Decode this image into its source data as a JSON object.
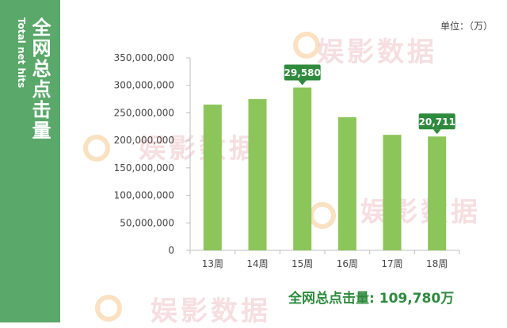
{
  "sidebar": {
    "title": "全网总点击量",
    "subtitle": "Total net hits",
    "color": "#5aa86a"
  },
  "unit_label": "单位：（万）",
  "watermark": "娱影数据",
  "summary": {
    "label": "全网总点击量:",
    "value": "109,780万"
  },
  "chart_data": {
    "type": "bar",
    "categories": [
      "13周",
      "14周",
      "15周",
      "16周",
      "17周",
      "18周"
    ],
    "values": [
      265000000,
      275000000,
      296000000,
      242000000,
      210000000,
      207000000
    ],
    "ylim": [
      0,
      350000000
    ],
    "yticks": [
      0,
      50000000,
      100000000,
      150000000,
      200000000,
      250000000,
      300000000,
      350000000
    ],
    "ytick_labels": [
      "0",
      "50,000,000",
      "100,000,000",
      "150,000,000",
      "200,000,000",
      "250,000,000",
      "300,000,000",
      "350,000,000"
    ],
    "grid": false,
    "bar_color": "#8cc55a",
    "annotations": [
      {
        "category": "15周",
        "text": "29,580",
        "color": "#2e8a3c"
      },
      {
        "category": "18周",
        "text": "20,711",
        "color": "#2e8a3c"
      }
    ]
  }
}
